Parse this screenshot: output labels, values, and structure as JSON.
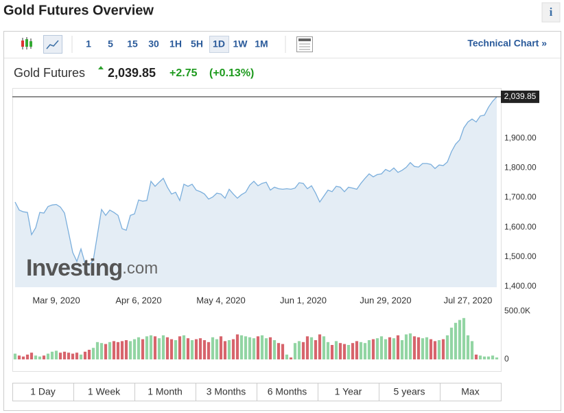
{
  "header": {
    "title": "Gold Futures Overview",
    "info": "i"
  },
  "toolbar": {
    "intervals": [
      "1",
      "5",
      "15",
      "30",
      "1H",
      "5H",
      "1D",
      "1W",
      "1M"
    ],
    "active": "1D",
    "technical": "Technical Chart »"
  },
  "quote": {
    "name": "Gold Futures",
    "price": "2,039.85",
    "change": "+2.75",
    "change_pct": "(+0.13%)"
  },
  "watermark": [
    "Investing",
    ".com"
  ],
  "chart_data": [
    {
      "type": "area",
      "color": "#7aaedc",
      "fill": "#e4edf5",
      "grid": false,
      "categories": [
        null,
        null,
        null,
        null,
        null,
        null,
        null,
        null,
        null,
        null,
        "Mar 9, 2020",
        null,
        null,
        null,
        null,
        null,
        null,
        null,
        null,
        null,
        null,
        null,
        null,
        null,
        null,
        null,
        null,
        null,
        null,
        null,
        "Apr 6, 2020",
        null,
        null,
        null,
        null,
        null,
        null,
        null,
        null,
        null,
        null,
        null,
        null,
        null,
        null,
        null,
        null,
        null,
        null,
        null,
        "May 4, 2020",
        null,
        null,
        null,
        null,
        null,
        null,
        null,
        null,
        null,
        null,
        null,
        null,
        null,
        null,
        null,
        null,
        null,
        null,
        null,
        "Jun 1, 2020",
        null,
        null,
        null,
        null,
        null,
        null,
        null,
        null,
        null,
        null,
        null,
        null,
        null,
        null,
        null,
        null,
        null,
        null,
        null,
        "Jun 29, 2020",
        null,
        null,
        null,
        null,
        null,
        null,
        null,
        null,
        null,
        null,
        null,
        null,
        null,
        null,
        null,
        null,
        null,
        null,
        null,
        "Jul 27, 2020",
        null,
        null,
        null,
        null,
        null,
        null,
        null
      ],
      "values": [
        1685,
        1658,
        1652,
        1650,
        1575,
        1598,
        1650,
        1648,
        1670,
        1675,
        1677,
        1668,
        1648,
        1582,
        1515,
        1485,
        1527,
        1478,
        1472,
        1490,
        1575,
        1660,
        1640,
        1658,
        1650,
        1640,
        1595,
        1590,
        1640,
        1645,
        1692,
        1688,
        1690,
        1755,
        1738,
        1752,
        1765,
        1735,
        1712,
        1718,
        1690,
        1745,
        1738,
        1745,
        1725,
        1720,
        1712,
        1695,
        1702,
        1715,
        1712,
        1698,
        1728,
        1712,
        1698,
        1710,
        1718,
        1742,
        1755,
        1740,
        1748,
        1752,
        1725,
        1735,
        1730,
        1728,
        1730,
        1728,
        1732,
        1750,
        1748,
        1730,
        1740,
        1715,
        1685,
        1705,
        1725,
        1720,
        1738,
        1735,
        1720,
        1735,
        1732,
        1728,
        1748,
        1765,
        1780,
        1770,
        1778,
        1780,
        1795,
        1788,
        1800,
        1785,
        1792,
        1802,
        1818,
        1805,
        1803,
        1815,
        1815,
        1812,
        1798,
        1810,
        1808,
        1820,
        1855,
        1880,
        1895,
        1935,
        1955,
        1965,
        1955,
        1975,
        1978,
        2005,
        2025,
        2039.85
      ],
      "last_label": "2,039.85",
      "ylim": [
        1400,
        2065
      ],
      "yticks": [
        {
          "value": 1400,
          "label": "1,400.00"
        },
        {
          "value": 1500,
          "label": "1,500.00"
        },
        {
          "value": 1600,
          "label": "1,600.00"
        },
        {
          "value": 1700,
          "label": "1,700.00"
        },
        {
          "value": 1800,
          "label": "1,800.00"
        },
        {
          "value": 1900,
          "label": "1,900.00"
        }
      ]
    },
    {
      "type": "bar",
      "up_color": "#92d5a3",
      "down_color": "#d7646c",
      "values": [
        60000,
        40000,
        30000,
        50000,
        70000,
        40000,
        30000,
        40000,
        60000,
        80000,
        90000,
        70000,
        80000,
        70000,
        60000,
        70000,
        50000,
        80000,
        100000,
        120000,
        180000,
        170000,
        160000,
        180000,
        190000,
        180000,
        190000,
        200000,
        190000,
        210000,
        230000,
        210000,
        240000,
        250000,
        240000,
        220000,
        250000,
        230000,
        210000,
        200000,
        240000,
        250000,
        220000,
        200000,
        210000,
        220000,
        200000,
        180000,
        230000,
        210000,
        240000,
        190000,
        200000,
        210000,
        260000,
        250000,
        240000,
        230000,
        220000,
        240000,
        250000,
        220000,
        230000,
        200000,
        170000,
        160000,
        50000,
        20000,
        170000,
        190000,
        180000,
        240000,
        230000,
        200000,
        260000,
        240000,
        180000,
        150000,
        190000,
        170000,
        160000,
        150000,
        170000,
        190000,
        180000,
        170000,
        200000,
        210000,
        220000,
        240000,
        210000,
        230000,
        220000,
        250000,
        200000,
        260000,
        270000,
        240000,
        230000,
        220000,
        230000,
        210000,
        190000,
        200000,
        210000,
        250000,
        330000,
        380000,
        410000,
        430000,
        250000,
        190000,
        50000,
        40000,
        30000,
        30000,
        40000,
        20000
      ],
      "ylim": [
        0,
        500000
      ],
      "yticks": [
        0,
        {
          "value": 500000,
          "label": "500.0K"
        }
      ]
    }
  ],
  "ranges": [
    "1 Day",
    "1 Week",
    "1 Month",
    "3 Months",
    "6 Months",
    "1 Year",
    "5 years",
    "Max"
  ]
}
